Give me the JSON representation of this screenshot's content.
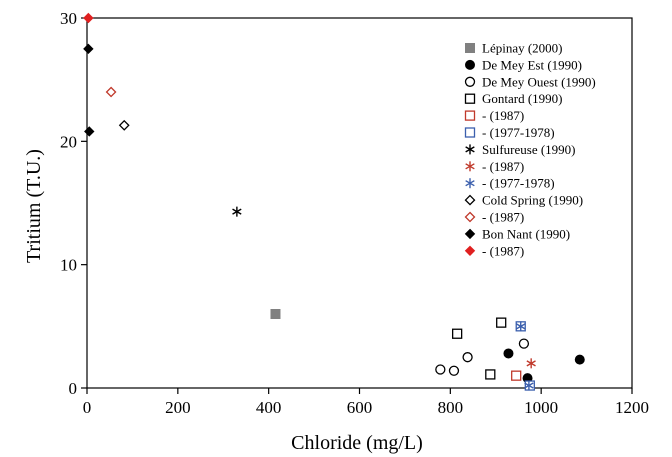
{
  "chart_data": {
    "type": "scatter",
    "xlabel": "Chloride (mg/L)",
    "ylabel": "Tritium (T.U.)",
    "xlim": [
      0,
      1200
    ],
    "ylim": [
      0,
      30
    ],
    "xticks": [
      0,
      200,
      400,
      600,
      800,
      1000,
      1200
    ],
    "yticks": [
      0,
      10,
      20,
      30
    ],
    "grid": false,
    "legend_position": "top-right",
    "series": [
      {
        "name": "Lépinay (2000)",
        "marker": "square-filled",
        "color": "#808080",
        "points": [
          [
            415,
            6.0
          ]
        ]
      },
      {
        "name": "De Mey Est (1990)",
        "marker": "circle-filled",
        "color": "#000000",
        "points": [
          [
            928,
            2.8
          ],
          [
            970,
            0.8
          ],
          [
            1085,
            2.3
          ]
        ]
      },
      {
        "name": "De Mey Ouest (1990)",
        "marker": "circle-open",
        "color": "#000000",
        "points": [
          [
            778,
            1.5
          ],
          [
            808,
            1.4
          ],
          [
            838,
            2.5
          ],
          [
            962,
            3.6
          ]
        ]
      },
      {
        "name": "Gontard (1990)",
        "marker": "square-open",
        "color": "#000000",
        "points": [
          [
            815,
            4.4
          ],
          [
            888,
            1.1
          ],
          [
            912,
            5.3
          ]
        ]
      },
      {
        "name": "-                (1987)",
        "marker": "square-open",
        "color": "#c0392b",
        "points": [
          [
            945,
            1.0
          ]
        ]
      },
      {
        "name": "-                (1977-1978)",
        "marker": "square-open",
        "color": "#3b5fad",
        "points": [
          [
            955,
            5.0
          ],
          [
            975,
            0.2
          ]
        ]
      },
      {
        "name": "Sulfureuse (1990)",
        "marker": "asterisk",
        "color": "#000000",
        "points": [
          [
            330,
            14.3
          ]
        ]
      },
      {
        "name": "-                (1987)",
        "marker": "asterisk",
        "color": "#c0392b",
        "points": [
          [
            978,
            2.0
          ]
        ]
      },
      {
        "name": "-                (1977-1978)",
        "marker": "asterisk",
        "color": "#3b5fad",
        "points": [
          [
            955,
            5.0
          ],
          [
            973,
            0.2
          ]
        ]
      },
      {
        "name": "Cold Spring (1990)",
        "marker": "diamond-open",
        "color": "#000000",
        "points": [
          [
            82,
            21.3
          ]
        ]
      },
      {
        "name": "-                (1987)",
        "marker": "diamond-open",
        "color": "#c0392b",
        "points": [
          [
            53,
            24.0
          ]
        ]
      },
      {
        "name": "Bon Nant (1990)",
        "marker": "diamond-filled",
        "color": "#000000",
        "points": [
          [
            3,
            27.5
          ],
          [
            5,
            20.8
          ]
        ]
      },
      {
        "name": "-                (1987)",
        "marker": "diamond-filled",
        "color": "#e02020",
        "points": [
          [
            3,
            30.0
          ]
        ]
      }
    ]
  }
}
